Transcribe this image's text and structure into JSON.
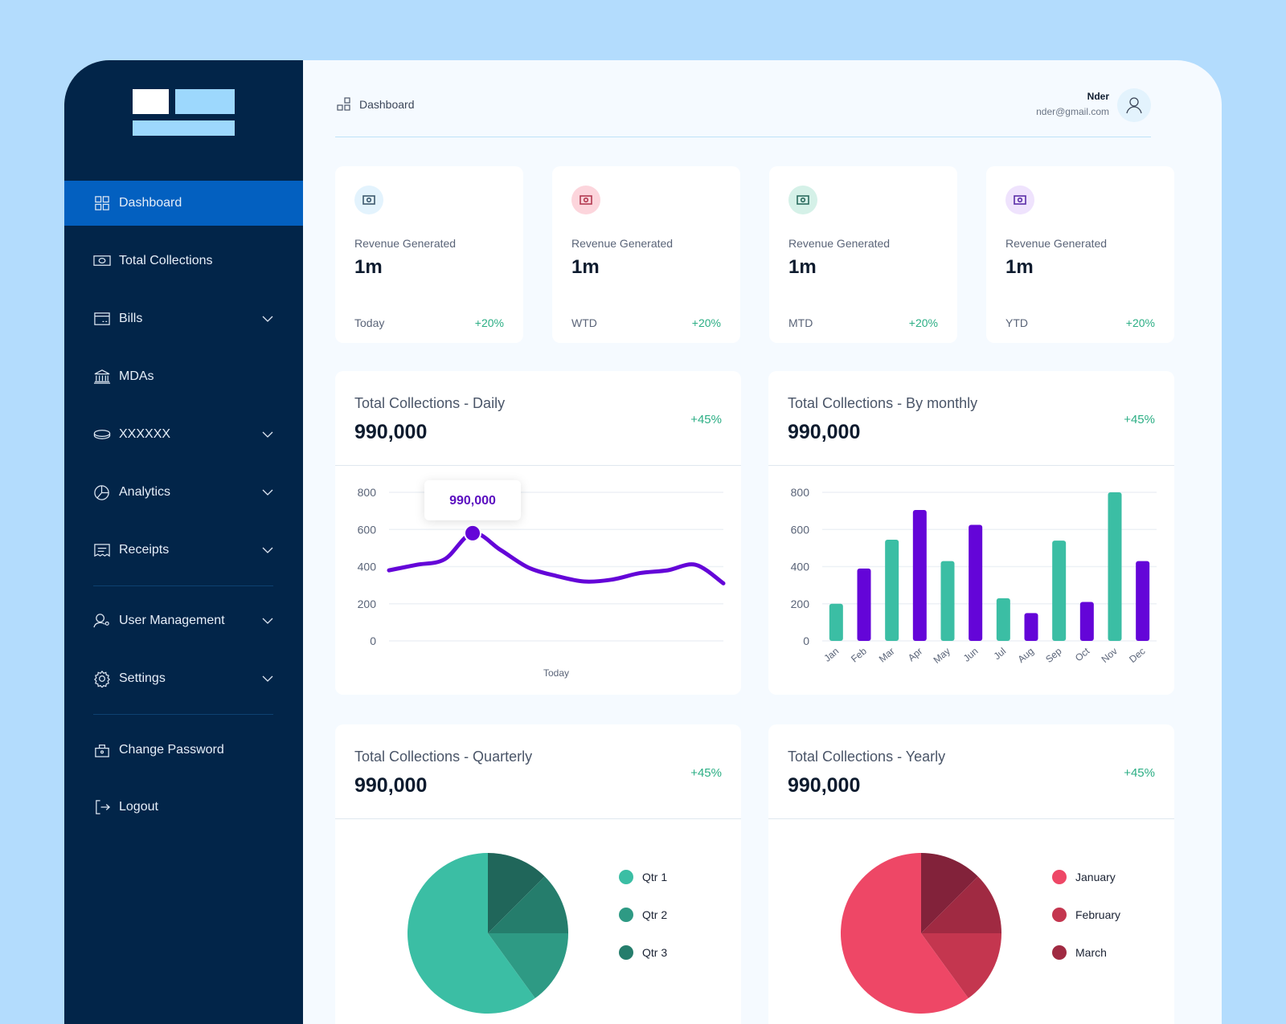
{
  "sidebar": {
    "items": [
      {
        "label": "Dashboard",
        "icon": "grid-icon",
        "active": true
      },
      {
        "label": "Total Collections",
        "icon": "banknote-icon"
      },
      {
        "label": "Bills",
        "icon": "card-icon",
        "chevron": true
      },
      {
        "label": "MDAs",
        "icon": "bank-icon"
      },
      {
        "label": "XXXXXX",
        "icon": "coin-icon",
        "chevron": true
      },
      {
        "label": "Analytics",
        "icon": "pie-icon",
        "chevron": true
      },
      {
        "label": "Receipts",
        "icon": "receipt-icon",
        "chevron": true
      },
      {
        "label": "User Management",
        "icon": "user-gear-icon",
        "chevron": true
      },
      {
        "label": "Settings",
        "icon": "gear-icon",
        "chevron": true
      },
      {
        "label": "Change Password",
        "icon": "lock-icon"
      },
      {
        "label": "Logout",
        "icon": "logout-icon"
      }
    ]
  },
  "header": {
    "breadcrumb": "Dashboard",
    "user_name": "Nder",
    "user_email": "nder@gmail.com"
  },
  "stats": [
    {
      "label": "Revenue Generated",
      "value": "1m",
      "period": "Today",
      "change": "+20%",
      "icon_bg": "#e3f3fd",
      "icon_color": "#3d5a6e"
    },
    {
      "label": "Revenue Generated",
      "value": "1m",
      "period": "WTD",
      "change": "+20%",
      "icon_bg": "#fcd5dc",
      "icon_color": "#b23a50"
    },
    {
      "label": "Revenue Generated",
      "value": "1m",
      "period": "MTD",
      "change": "+20%",
      "icon_bg": "#d5f1e8",
      "icon_color": "#2b6b5e"
    },
    {
      "label": "Revenue Generated",
      "value": "1m",
      "period": "YTD",
      "change": "+20%",
      "icon_bg": "#efe3fd",
      "icon_color": "#5b2ea8"
    }
  ],
  "panels": [
    {
      "title": "Total Collections - Daily",
      "value": "990,000",
      "change": "+45%"
    },
    {
      "title": "Total Collections - By monthly",
      "value": "990,000",
      "change": "+45%"
    },
    {
      "title": "Total Collections - Quarterly",
      "value": "990,000",
      "change": "+45%"
    },
    {
      "title": "Total Collections - Yearly",
      "value": "990,000",
      "change": "+45%"
    }
  ],
  "chart_data": [
    {
      "type": "line",
      "xlabel": "Today",
      "ylim": [
        0,
        800
      ],
      "yticks": [
        0,
        200,
        400,
        600,
        800
      ],
      "grid": true,
      "color": "#6405d8",
      "values": [
        380,
        410,
        440,
        580,
        490,
        395,
        350,
        320,
        330,
        365,
        380,
        410,
        310
      ],
      "tooltip": "990,000",
      "highlight_index": 3
    },
    {
      "type": "bar",
      "ylim": [
        0,
        800
      ],
      "yticks": [
        0,
        200,
        400,
        600,
        800
      ],
      "grid": true,
      "categories": [
        "Jan",
        "Feb",
        "Mar",
        "Apr",
        "May",
        "Jun",
        "Jul",
        "Aug",
        "Sep",
        "Oct",
        "Nov",
        "Dec"
      ],
      "values": [
        200,
        390,
        545,
        705,
        430,
        625,
        230,
        150,
        540,
        210,
        800,
        430
      ],
      "colors": [
        "#3bbea4",
        "#6405d8"
      ]
    },
    {
      "type": "pie",
      "legend": "right",
      "slices": [
        {
          "name": "Qtr 1",
          "value": 60,
          "color": "#3bbea4"
        },
        {
          "name": "Qtr 2",
          "value": 15,
          "color": "#2e9a84"
        },
        {
          "name": "Qtr 3",
          "value": 12.5,
          "color": "#257d6c"
        },
        {
          "name": "",
          "value": 12.5,
          "color": "#20665a"
        }
      ]
    },
    {
      "type": "pie",
      "legend": "right",
      "slices": [
        {
          "name": "January",
          "value": 60,
          "color": "#ee4766"
        },
        {
          "name": "February",
          "value": 15,
          "color": "#c4364f"
        },
        {
          "name": "March",
          "value": 12.5,
          "color": "#a02a42"
        },
        {
          "name": "",
          "value": 12.5,
          "color": "#82223a"
        }
      ]
    }
  ]
}
